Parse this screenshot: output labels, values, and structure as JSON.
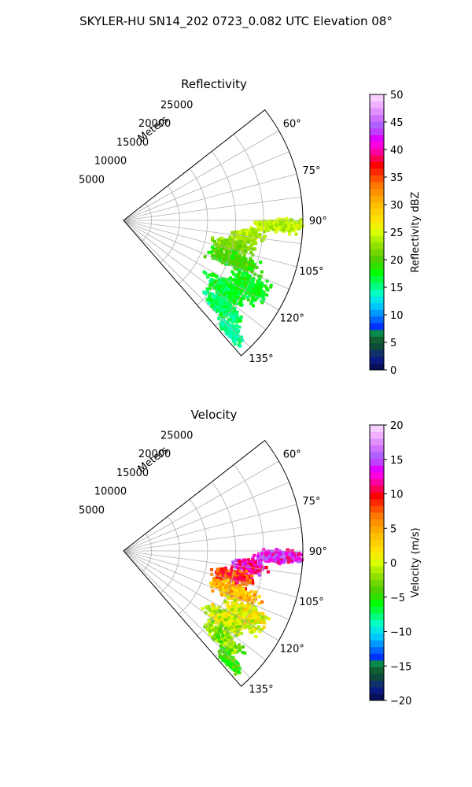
{
  "figure": {
    "suptitle": "SKYLER-HU  SN14_202  0723_0.082 UTC Elevation 08°"
  },
  "chart_data": [
    {
      "type": "heatmap",
      "projection": "polar-sector",
      "title": "Reflectivity",
      "range_axis_label": "Meters",
      "range_ticks": [
        "5000",
        "10000",
        "15000",
        "20000",
        "25000"
      ],
      "range_tick_values": [
        5000,
        10000,
        15000,
        20000,
        25000
      ],
      "range_max": 32000,
      "azimuth_ticks": [
        "60°",
        "75°",
        "90°",
        "105°",
        "120°",
        "135°"
      ],
      "azimuth_tick_values": [
        60,
        75,
        90,
        105,
        120,
        135
      ],
      "azimuth_range": [
        52,
        139
      ],
      "grid": true,
      "colorbar": {
        "label": "Reflectivity dBZ",
        "min": 0,
        "max": 50,
        "ticks": [
          "0",
          "5",
          "10",
          "15",
          "20",
          "25",
          "30",
          "35",
          "40",
          "45",
          "50"
        ],
        "colors": [
          "#08105a",
          "#0a1a80",
          "#12306a",
          "#0e4a3a",
          "#106030",
          "#0a8a4a",
          "#0033ff",
          "#0066ff",
          "#0099ff",
          "#00c8ff",
          "#00e6e6",
          "#00ffc0",
          "#00ff80",
          "#00ff40",
          "#00ff00",
          "#30e000",
          "#50d000",
          "#70d800",
          "#90e000",
          "#b0f000",
          "#d8ff00",
          "#f0f000",
          "#ffe000",
          "#ffd000",
          "#ffc000",
          "#ffa800",
          "#ff9000",
          "#ff7800",
          "#ff5000",
          "#ff2800",
          "#ff0000",
          "#ff0050",
          "#ff00a0",
          "#ff00e0",
          "#e000ff",
          "#c040ff",
          "#b060ff",
          "#d070ff",
          "#e090ff",
          "#f0b0ff",
          "#f8d0ff"
        ]
      },
      "echo_value_range": [
        14,
        26
      ]
    },
    {
      "type": "heatmap",
      "projection": "polar-sector",
      "title": "Velocity",
      "range_axis_label": "Meters",
      "range_ticks": [
        "5000",
        "10000",
        "15000",
        "20000",
        "25000"
      ],
      "range_tick_values": [
        5000,
        10000,
        15000,
        20000,
        25000
      ],
      "range_max": 32000,
      "azimuth_ticks": [
        "60°",
        "75°",
        "90°",
        "105°",
        "120°",
        "135°"
      ],
      "azimuth_tick_values": [
        60,
        75,
        90,
        105,
        120,
        135
      ],
      "azimuth_range": [
        52,
        139
      ],
      "grid": true,
      "colorbar": {
        "label": "Velocity (m/s)",
        "min": -20,
        "max": 20,
        "ticks": [
          "−20",
          "−15",
          "−10",
          "−5",
          "0",
          "5",
          "10",
          "15",
          "20"
        ],
        "colors": [
          "#08105a",
          "#0a1a80",
          "#12306a",
          "#0e4a3a",
          "#106030",
          "#0a8a4a",
          "#0033ff",
          "#0066ff",
          "#0099ff",
          "#00c8ff",
          "#00e6e6",
          "#00ffc0",
          "#00ff80",
          "#00ff40",
          "#00ff00",
          "#30e000",
          "#50d000",
          "#70d800",
          "#90e000",
          "#b0f000",
          "#d8ff00",
          "#f0f000",
          "#ffe000",
          "#ffd000",
          "#ffc000",
          "#ffa800",
          "#ff9000",
          "#ff7800",
          "#ff5000",
          "#ff2800",
          "#ff0000",
          "#ff0050",
          "#ff00a0",
          "#ff00e0",
          "#e000ff",
          "#c040ff",
          "#b060ff",
          "#d070ff",
          "#e090ff",
          "#f0b0ff",
          "#f8d0ff"
        ]
      },
      "echo_value_range": [
        -6,
        17
      ]
    }
  ]
}
